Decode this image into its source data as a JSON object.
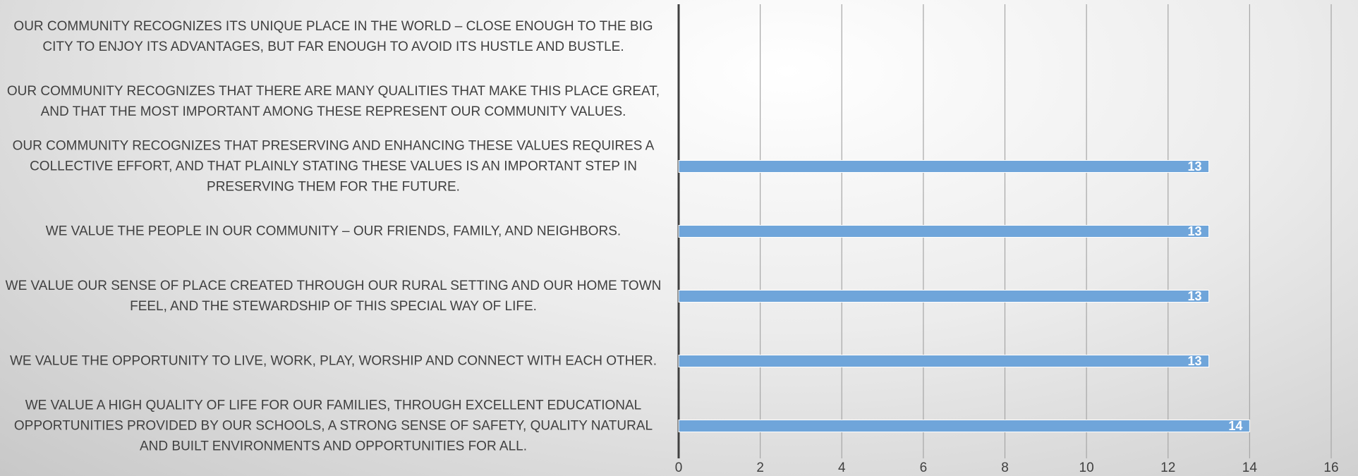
{
  "chart_data": {
    "type": "bar",
    "orientation": "horizontal",
    "categories": [
      "OUR COMMUNITY RECOGNIZES ITS UNIQUE PLACE IN THE WORLD – CLOSE ENOUGH TO THE BIG CITY TO ENJOY ITS ADVANTAGES, BUT FAR ENOUGH TO AVOID ITS HUSTLE AND BUSTLE.",
      "OUR COMMUNITY RECOGNIZES THAT THERE ARE MANY QUALITIES THAT MAKE THIS PLACE GREAT, AND THAT THE MOST IMPORTANT AMONG THESE REPRESENT OUR COMMUNITY VALUES.",
      "OUR COMMUNITY RECOGNIZES THAT PRESERVING AND ENHANCING THESE VALUES REQUIRES A COLLECTIVE EFFORT, AND THAT PLAINLY STATING THESE VALUES IS AN IMPORTANT STEP IN PRESERVING THEM FOR THE FUTURE.",
      "WE VALUE THE PEOPLE IN OUR COMMUNITY – OUR FRIENDS, FAMILY, AND NEIGHBORS.",
      "WE VALUE OUR SENSE OF PLACE CREATED THROUGH OUR RURAL SETTING AND OUR HOME TOWN FEEL, AND THE STEWARDSHIP OF THIS SPECIAL WAY OF LIFE.",
      "WE VALUE THE OPPORTUNITY TO LIVE, WORK, PLAY, WORSHIP AND CONNECT WITH EACH OTHER.",
      "WE VALUE A HIGH QUALITY OF LIFE FOR OUR FAMILIES, THROUGH EXCELLENT EDUCATIONAL OPPORTUNITIES PROVIDED BY OUR SCHOOLS, A STRONG SENSE OF SAFETY, QUALITY NATURAL AND BUILT ENVIRONMENTS AND OPPORTUNITIES FOR ALL."
    ],
    "values": [
      null,
      null,
      13,
      13,
      13,
      13,
      14
    ],
    "color": "#6fa5da",
    "xlim": [
      0,
      16
    ],
    "xticks": [
      0,
      2,
      4,
      6,
      8,
      10,
      12,
      14,
      16
    ],
    "grid": true
  }
}
